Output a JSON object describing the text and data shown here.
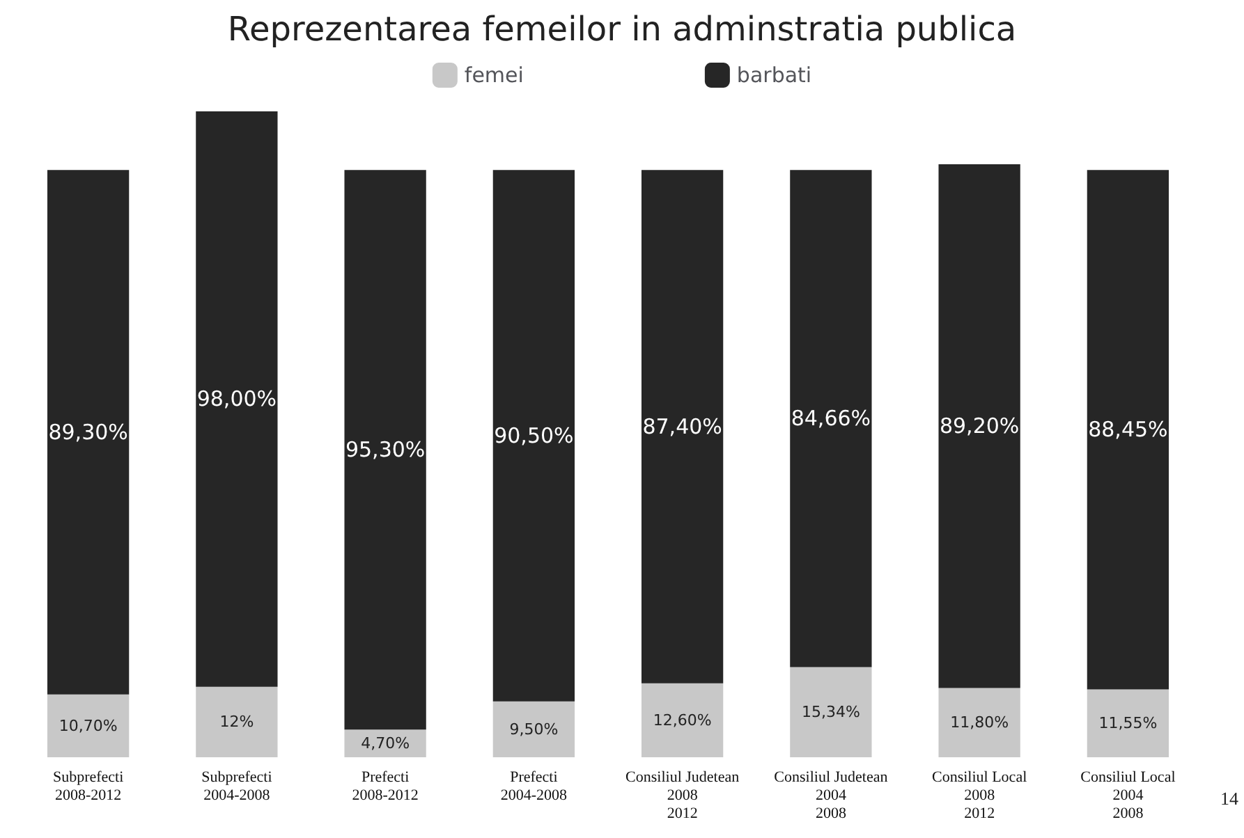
{
  "chart_data": {
    "type": "bar",
    "title": "Reprezentarea femeilor in adminstratia publica",
    "stacked": true,
    "legend": "top",
    "categories": [
      "Subprefecti\n2008-2012",
      "Subprefecti\n2004-2008",
      "Prefecti\n2008-2012",
      "Prefecti\n2004-2008",
      "Consiliul Judetean\n2008\n2012",
      "Consiliul Judetean\n2004\n2008",
      "Consiliul Local\n2008\n2012",
      "Consiliul Local\n2004\n2008"
    ],
    "series": [
      {
        "name": "femei",
        "color": "#c8c8c8",
        "values": [
          10.7,
          12,
          4.7,
          9.5,
          12.6,
          15.34,
          11.8,
          11.55
        ],
        "value_labels": [
          "10,70%",
          "12%",
          "4,70%",
          "9,50%",
          "12,60%",
          "15,34%",
          "11,80%",
          "11,55%"
        ]
      },
      {
        "name": "barbati",
        "color": "#262626",
        "values": [
          89.3,
          98,
          95.3,
          90.5,
          87.4,
          84.66,
          89.2,
          88.45
        ],
        "value_labels": [
          "89,30%",
          "98,00%",
          "95,30%",
          "90,50%",
          "87,40%",
          "84,66%",
          "89,20%",
          "88,45%"
        ]
      }
    ],
    "annotations": [
      "14"
    ]
  }
}
